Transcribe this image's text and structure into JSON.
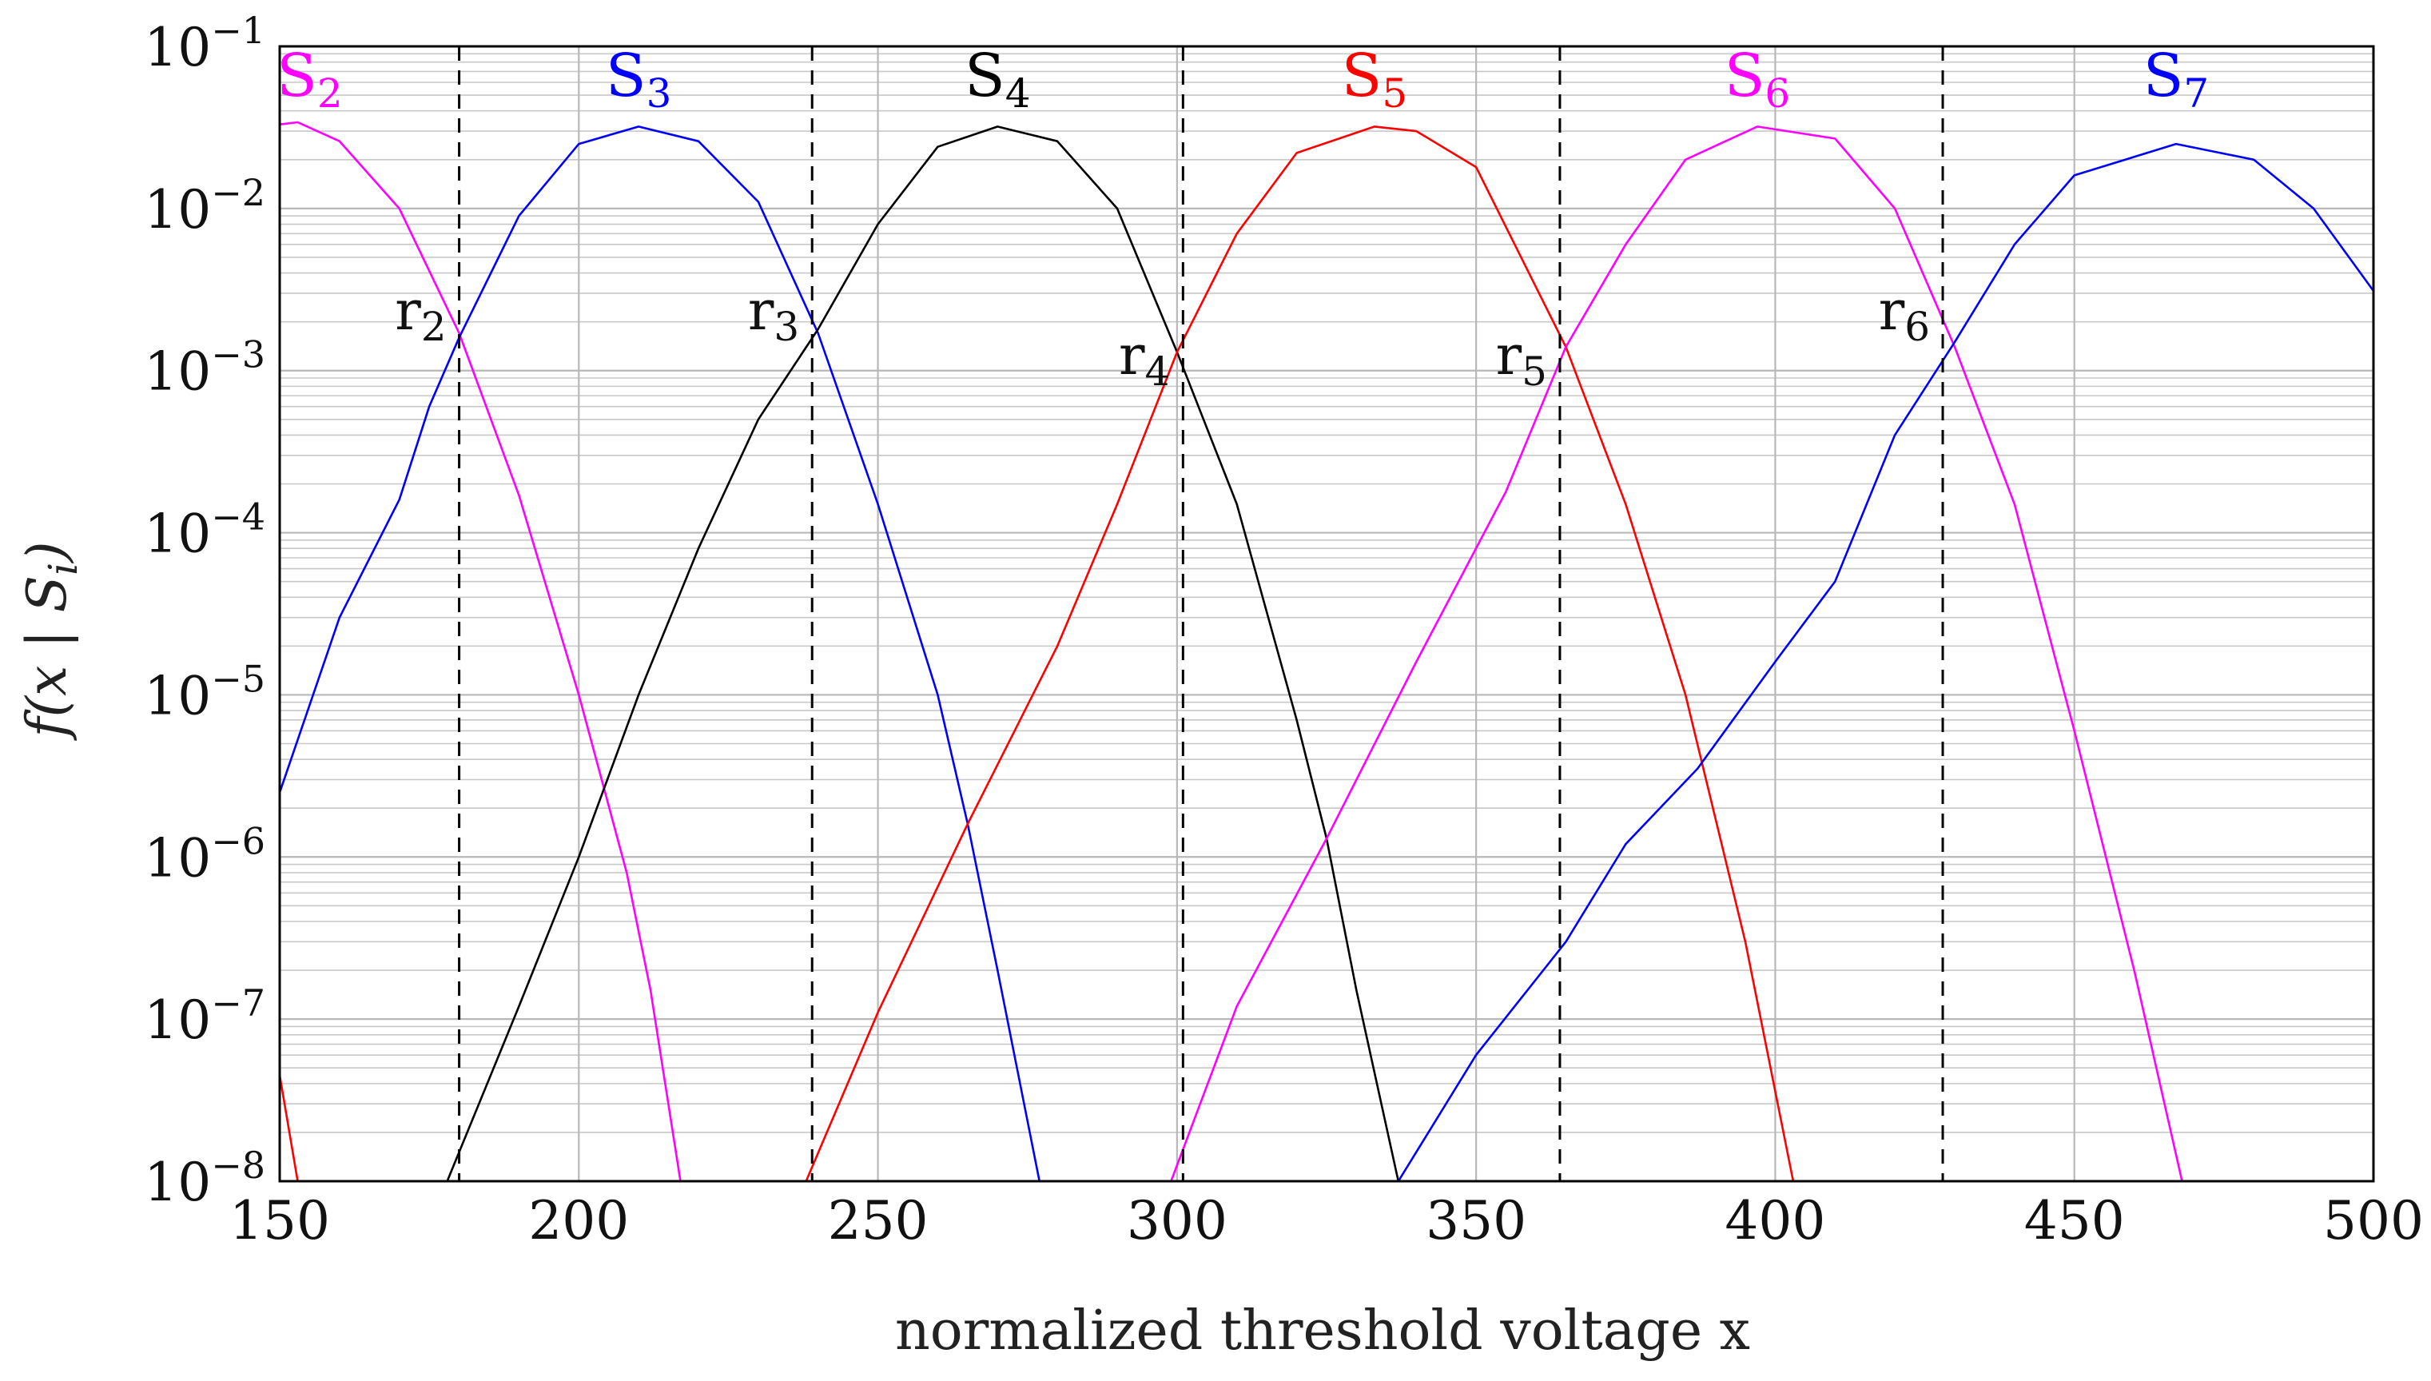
{
  "chart_data": {
    "type": "line",
    "yscale": "log",
    "xlabel": "normalized threshold voltage x",
    "ylabel": "f(x | S_i)",
    "xlim": [
      150,
      500
    ],
    "ylim": [
      1e-08,
      0.1
    ],
    "grid": true,
    "x_ticks": [
      {
        "value": 150,
        "label": "150"
      },
      {
        "value": 200,
        "label": "200"
      },
      {
        "value": 250,
        "label": "250"
      },
      {
        "value": 300,
        "label": "300"
      },
      {
        "value": 350,
        "label": "350"
      },
      {
        "value": 400,
        "label": "400"
      },
      {
        "value": 450,
        "label": "450"
      },
      {
        "value": 500,
        "label": "500"
      }
    ],
    "y_ticks": [
      {
        "exp": -1,
        "base": "10",
        "sup": "−1"
      },
      {
        "exp": -2,
        "base": "10",
        "sup": "−2"
      },
      {
        "exp": -3,
        "base": "10",
        "sup": "−3"
      },
      {
        "exp": -4,
        "base": "10",
        "sup": "−4"
      },
      {
        "exp": -5,
        "base": "10",
        "sup": "−5"
      },
      {
        "exp": -6,
        "base": "10",
        "sup": "−6"
      },
      {
        "exp": -7,
        "base": "10",
        "sup": "−7"
      },
      {
        "exp": -8,
        "base": "10",
        "sup": "−8"
      }
    ],
    "series": [
      {
        "name": "S2",
        "letter": "S",
        "sub": "2",
        "color": "#ff00ff",
        "label_x": 155,
        "points": [
          [
            150,
            0.033
          ],
          [
            153,
            0.034
          ],
          [
            160,
            0.026
          ],
          [
            170,
            0.01
          ],
          [
            180,
            0.0017
          ],
          [
            190,
            0.00017
          ],
          [
            200,
            1e-05
          ],
          [
            208,
            8e-07
          ],
          [
            212,
            1.5e-07
          ],
          [
            217,
            1e-08
          ]
        ]
      },
      {
        "name": "S3",
        "letter": "S",
        "sub": "3",
        "color": "#0000ff",
        "label_x": 210,
        "points": [
          [
            150,
            2.5e-06
          ],
          [
            160,
            3e-05
          ],
          [
            170,
            0.00016
          ],
          [
            175,
            0.0006
          ],
          [
            180,
            0.0016
          ],
          [
            190,
            0.009
          ],
          [
            200,
            0.025
          ],
          [
            210,
            0.032
          ],
          [
            220,
            0.026
          ],
          [
            230,
            0.011
          ],
          [
            240,
            0.0017
          ],
          [
            250,
            0.00015
          ],
          [
            260,
            1e-05
          ],
          [
            265,
            1.6e-06
          ],
          [
            270,
            2e-07
          ],
          [
            277,
            1e-08
          ]
        ]
      },
      {
        "name": "S4",
        "letter": "S",
        "sub": "4",
        "color": "#000000",
        "label_x": 270,
        "points": [
          [
            178,
            1e-08
          ],
          [
            190,
            1.2e-07
          ],
          [
            200,
            1e-06
          ],
          [
            210,
            1e-05
          ],
          [
            220,
            8e-05
          ],
          [
            230,
            0.0005
          ],
          [
            240,
            0.0018
          ],
          [
            250,
            0.008
          ],
          [
            260,
            0.024
          ],
          [
            270,
            0.032
          ],
          [
            280,
            0.026
          ],
          [
            290,
            0.01
          ],
          [
            300,
            0.0013
          ],
          [
            310,
            0.00015
          ],
          [
            320,
            7e-06
          ],
          [
            325,
            1.3e-06
          ],
          [
            330,
            1.5e-07
          ],
          [
            337,
            1e-08
          ]
        ]
      },
      {
        "name": "S5",
        "letter": "S",
        "sub": "5",
        "color": "#ff0000",
        "label_x": 333,
        "points": [
          [
            150,
            4.5e-08
          ],
          [
            153,
            1e-08
          ],
          [
            238,
            1e-08
          ],
          [
            250,
            1.1e-07
          ],
          [
            265,
            1.6e-06
          ],
          [
            280,
            2e-05
          ],
          [
            290,
            0.00015
          ],
          [
            300,
            0.0013
          ],
          [
            310,
            0.007
          ],
          [
            320,
            0.022
          ],
          [
            333,
            0.032
          ],
          [
            340,
            0.03
          ],
          [
            350,
            0.018
          ],
          [
            365,
            0.0014
          ],
          [
            375,
            0.00015
          ],
          [
            385,
            1e-05
          ],
          [
            395,
            3e-07
          ],
          [
            403,
            1e-08
          ]
        ]
      },
      {
        "name": "S6",
        "letter": "S",
        "sub": "6",
        "color": "#ff00ff",
        "label_x": 397,
        "points": [
          [
            299,
            1e-08
          ],
          [
            310,
            1.2e-07
          ],
          [
            325,
            1.3e-06
          ],
          [
            340,
            1.6e-05
          ],
          [
            355,
            0.00018
          ],
          [
            365,
            0.0014
          ],
          [
            375,
            0.006
          ],
          [
            385,
            0.02
          ],
          [
            397,
            0.032
          ],
          [
            410,
            0.027
          ],
          [
            420,
            0.01
          ],
          [
            430,
            0.0014
          ],
          [
            440,
            0.00015
          ],
          [
            450,
            6e-06
          ],
          [
            460,
            2e-07
          ],
          [
            468,
            1e-08
          ]
        ]
      },
      {
        "name": "S7",
        "letter": "S",
        "sub": "7",
        "color": "#0000ff",
        "label_x": 467,
        "points": [
          [
            337,
            1e-08
          ],
          [
            350,
            6e-08
          ],
          [
            365,
            3e-07
          ],
          [
            375,
            1.2e-06
          ],
          [
            387,
            3.5e-06
          ],
          [
            400,
            1.6e-05
          ],
          [
            410,
            5e-05
          ],
          [
            420,
            0.0004
          ],
          [
            430,
            0.0015
          ],
          [
            440,
            0.006
          ],
          [
            450,
            0.016
          ],
          [
            467,
            0.025
          ],
          [
            480,
            0.02
          ],
          [
            490,
            0.01
          ],
          [
            500,
            0.0031
          ]
        ]
      }
    ],
    "thresholds": [
      {
        "name": "r2",
        "letter": "r",
        "sub": "2",
        "x": 180
      },
      {
        "name": "r3",
        "letter": "r",
        "sub": "3",
        "x": 239
      },
      {
        "name": "r4",
        "letter": "r",
        "sub": "4",
        "x": 301
      },
      {
        "name": "r5",
        "letter": "r",
        "sub": "5",
        "x": 364
      },
      {
        "name": "r6",
        "letter": "r",
        "sub": "6",
        "x": 428
      }
    ]
  }
}
